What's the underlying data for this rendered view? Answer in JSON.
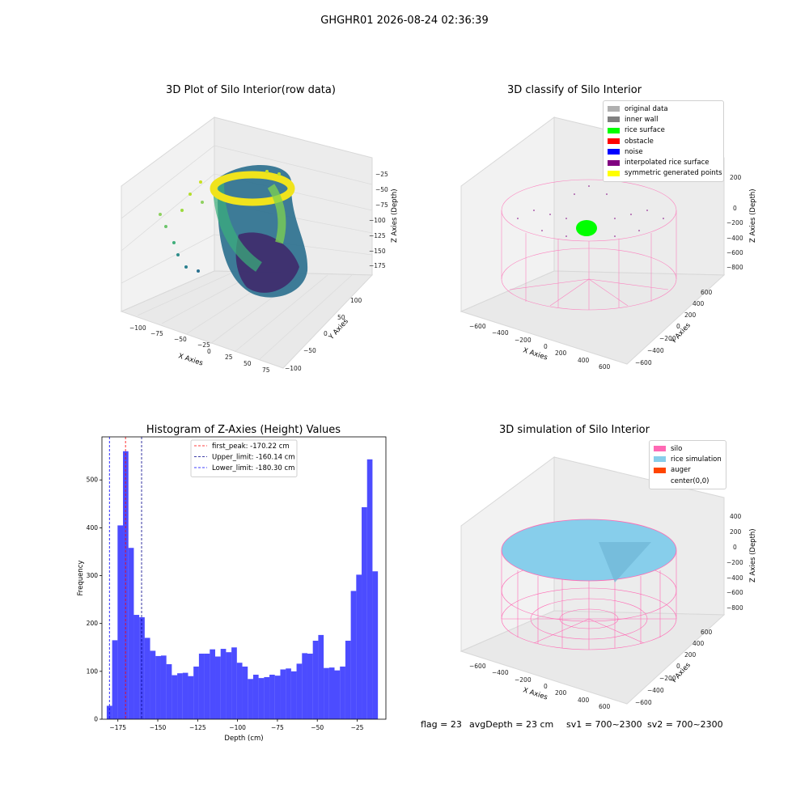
{
  "suptitle": "GHGHR01 2026-08-24 02:36:39",
  "panels": {
    "raw": {
      "title": "3D Plot of Silo Interior(row data)",
      "xlabel": "X Axies",
      "ylabel": "Y Axies",
      "zlabel": "Z Axies (Depth)",
      "xticks": [
        "−100",
        "−75",
        "−50",
        "−25",
        "0",
        "25",
        "50",
        "75"
      ],
      "yticks": [
        "−100",
        "−50",
        "0",
        "50",
        "100"
      ],
      "zticks": [
        "−25",
        "−50",
        "−75",
        "−100",
        "−125",
        "−150",
        "−175"
      ]
    },
    "classify": {
      "title": "3D classify of Silo Interior",
      "xlabel": "X Axies",
      "ylabel": "Y Axies",
      "zlabel": "Z Axies (Depth)",
      "xticks": [
        "−600",
        "−400",
        "−200",
        "0",
        "200",
        "400",
        "600"
      ],
      "yticks": [
        "−600",
        "−400",
        "−200",
        "0",
        "200",
        "400",
        "600"
      ],
      "zticks": [
        "200",
        "0",
        "−200",
        "−400",
        "−600",
        "−800"
      ],
      "legend": [
        {
          "label": "original data",
          "color": "#b0b0b0"
        },
        {
          "label": "inner wall",
          "color": "#808080"
        },
        {
          "label": "rice surface",
          "color": "#00ff00"
        },
        {
          "label": "obstacle",
          "color": "#ff0000"
        },
        {
          "label": "noise",
          "color": "#0000ff"
        },
        {
          "label": "interpolated rice surface",
          "color": "#800080"
        },
        {
          "label": "symmetric generated points",
          "color": "#ffff00"
        }
      ]
    },
    "simulation": {
      "title": "3D simulation of Silo Interior",
      "xlabel": "X Axies",
      "ylabel": "Y Axies",
      "zlabel": "Z Axies (Depth)",
      "xticks": [
        "−600",
        "−400",
        "−200",
        "0",
        "200",
        "400",
        "600"
      ],
      "yticks": [
        "−600",
        "−400",
        "−200",
        "0",
        "200",
        "400",
        "600"
      ],
      "zticks": [
        "400",
        "200",
        "0",
        "−200",
        "−400",
        "−600",
        "−800"
      ],
      "legend": [
        {
          "label": "silo",
          "color": "#ff69b4"
        },
        {
          "label": "rice simulation",
          "color": "#87ceeb"
        },
        {
          "label": "auger",
          "color": "#ff4500"
        },
        {
          "label": "center(0,0)",
          "color": "#ffffff"
        }
      ]
    }
  },
  "footer": {
    "flag": "flag = 23",
    "avg_depth": "avgDepth = 23 cm",
    "sv1": "sv1 = 700~2300",
    "sv2": "sv2 = 700~2300"
  },
  "chart_data": [
    {
      "type": "histogram",
      "title": "Histogram of Z-Axies (Height) Values",
      "xlabel": "Depth (cm)",
      "ylabel": "Frequency",
      "xlim": [
        -185,
        -7
      ],
      "ylim": [
        0,
        590
      ],
      "xticks": [
        -175,
        -150,
        -125,
        -100,
        -75,
        -50,
        -25
      ],
      "xtick_labels": [
        "−175",
        "−150",
        "−125",
        "−100",
        "−75",
        "−50",
        "−25"
      ],
      "yticks": [
        0,
        100,
        200,
        300,
        400,
        500
      ],
      "bin_start": -182,
      "bin_width": 3.4,
      "values": [
        28,
        165,
        405,
        560,
        358,
        218,
        213,
        170,
        143,
        132,
        133,
        115,
        92,
        96,
        97,
        90,
        110,
        137,
        137,
        146,
        131,
        147,
        140,
        150,
        118,
        110,
        84,
        93,
        86,
        88,
        93,
        91,
        104,
        106,
        100,
        116,
        138,
        137,
        164,
        176,
        107,
        108,
        102,
        110,
        164,
        268,
        302,
        443,
        543,
        309
      ],
      "bar_color": "#0000ff",
      "bar_alpha": 0.7,
      "lines": [
        {
          "label": "first_peak: -170.22 cm",
          "x": -170.22,
          "color": "#ff0000"
        },
        {
          "label": "Upper_limit: -160.14 cm",
          "x": -160.14,
          "color": "#00008b"
        },
        {
          "label": "Lower_limit: -180.30 cm",
          "x": -180.3,
          "color": "#0000ff"
        }
      ],
      "legend_position": "top-center"
    }
  ]
}
